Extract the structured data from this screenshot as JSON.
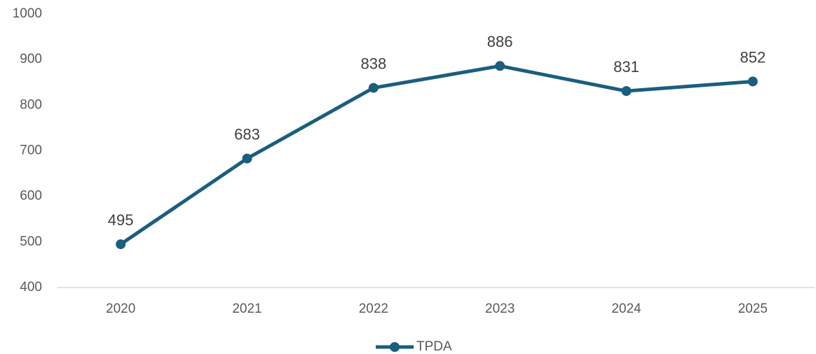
{
  "chart_data": {
    "type": "line",
    "categories": [
      "2020",
      "2021",
      "2022",
      "2023",
      "2024",
      "2025"
    ],
    "series": [
      {
        "name": "TPDA",
        "color": "#1b5e7e",
        "values": [
          495,
          683,
          838,
          886,
          831,
          852
        ]
      }
    ],
    "ylim": [
      400,
      1000
    ],
    "yticks": [
      400,
      500,
      600,
      700,
      800,
      900,
      1000
    ],
    "grid": false,
    "legend": "bottom"
  }
}
